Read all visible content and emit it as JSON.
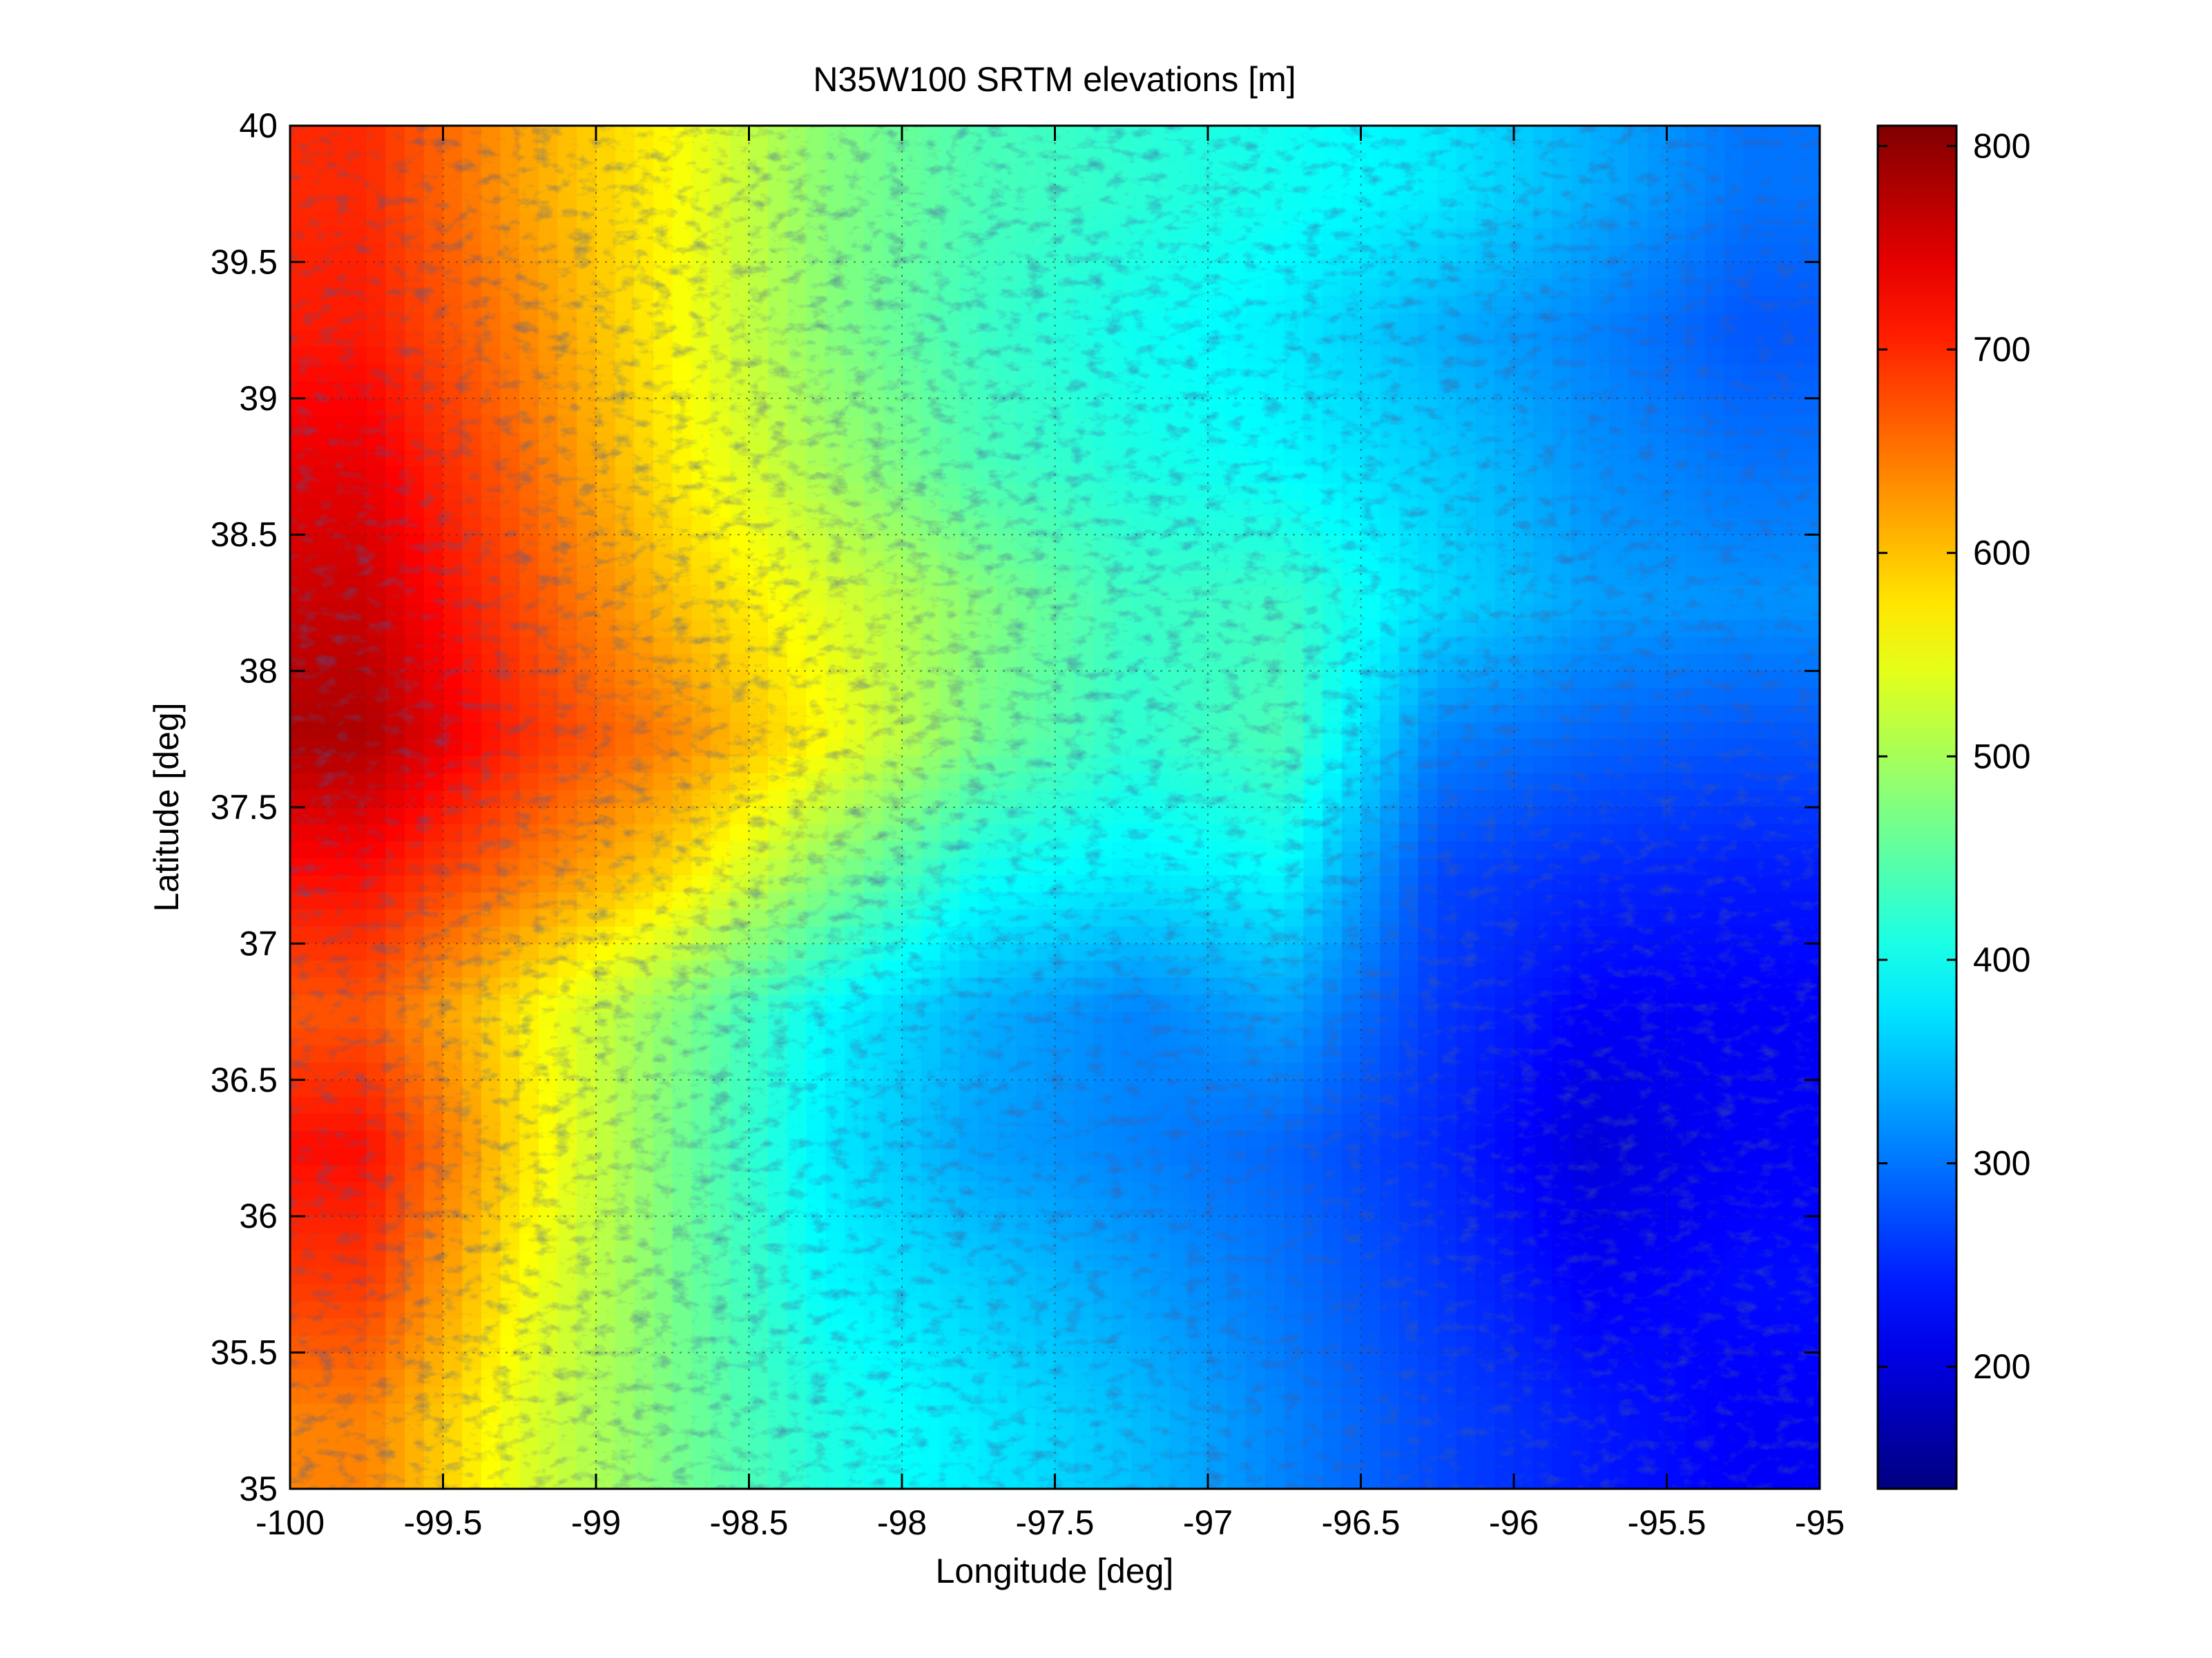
{
  "chart_data": {
    "type": "heatmap",
    "title": "N35W100 SRTM elevations [m]",
    "xlabel": "Longitude [deg]",
    "ylabel": "Latitude [deg]",
    "xlim": [
      -100,
      -95
    ],
    "ylim": [
      35,
      40
    ],
    "x_ticks": [
      -100,
      -99.5,
      -99,
      -98.5,
      -98,
      -97.5,
      -97,
      -96.5,
      -96,
      -95.5,
      -95
    ],
    "y_ticks": [
      35,
      35.5,
      36,
      36.5,
      37,
      37.5,
      38,
      38.5,
      39,
      39.5,
      40
    ],
    "grid": true,
    "colormap": "jet",
    "colorbar": {
      "position": "right",
      "range": [
        140,
        810
      ],
      "ticks": [
        200,
        300,
        400,
        500,
        600,
        700,
        800
      ]
    },
    "elevation_grid": {
      "longitudes": [
        -99.75,
        -99.25,
        -98.75,
        -98.25,
        -97.75,
        -97.25,
        -96.75,
        -96.25,
        -95.75,
        -95.25
      ],
      "latitudes": [
        39.75,
        39.25,
        38.75,
        38.25,
        37.75,
        37.25,
        36.75,
        36.25,
        35.75,
        35.25
      ],
      "values_m": [
        [
          700,
          620,
          560,
          480,
          440,
          420,
          400,
          380,
          340,
          300
        ],
        [
          710,
          640,
          560,
          480,
          430,
          400,
          380,
          340,
          310,
          280
        ],
        [
          740,
          660,
          570,
          500,
          440,
          410,
          390,
          360,
          320,
          300
        ],
        [
          760,
          680,
          600,
          540,
          480,
          430,
          430,
          370,
          330,
          320
        ],
        [
          780,
          700,
          640,
          560,
          470,
          420,
          440,
          310,
          290,
          280
        ],
        [
          720,
          650,
          580,
          480,
          400,
          380,
          390,
          270,
          250,
          240
        ],
        [
          670,
          570,
          480,
          390,
          340,
          310,
          330,
          260,
          220,
          220
        ],
        [
          720,
          580,
          470,
          380,
          330,
          310,
          290,
          250,
          200,
          220
        ],
        [
          690,
          560,
          470,
          390,
          360,
          330,
          300,
          260,
          220,
          230
        ],
        [
          640,
          540,
          470,
          410,
          380,
          350,
          310,
          270,
          240,
          220
        ]
      ]
    }
  }
}
